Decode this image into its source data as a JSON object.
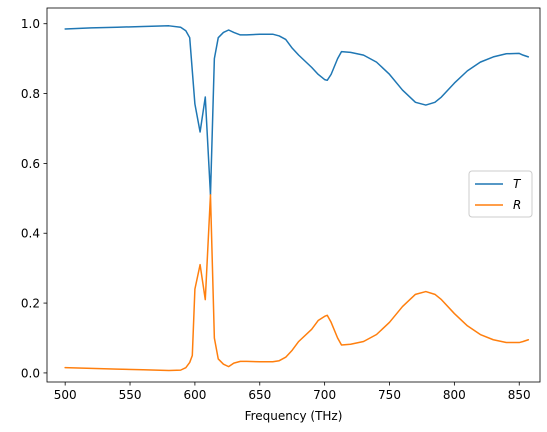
{
  "chart_data": {
    "type": "line",
    "title": "",
    "xlabel": "Frequency (THz)",
    "ylabel": "",
    "xlim": [
      486,
      866
    ],
    "ylim": [
      -0.026,
      1.045
    ],
    "xticks": [
      500,
      550,
      600,
      650,
      700,
      750,
      800,
      850
    ],
    "yticks": [
      0.0,
      0.2,
      0.4,
      0.6,
      0.8,
      1.0
    ],
    "ytick_labels": [
      "0.0",
      "0.2",
      "0.4",
      "0.6",
      "0.8",
      "1.0"
    ],
    "grid": false,
    "legend": "center-right",
    "series": [
      {
        "name": "T",
        "color": "#1f77b4",
        "x": [
          500,
          520,
          540,
          560,
          580,
          589,
          593,
          596,
          600,
          604,
          608,
          612,
          615,
          618,
          622,
          626,
          630,
          635,
          640,
          650,
          660,
          665,
          670,
          675,
          680,
          690,
          695,
          700,
          702,
          705,
          710,
          713,
          720,
          730,
          740,
          750,
          760,
          770,
          778,
          785,
          790,
          800,
          810,
          820,
          830,
          840,
          850,
          853,
          857
        ],
        "y": [
          0.985,
          0.988,
          0.99,
          0.992,
          0.994,
          0.99,
          0.98,
          0.96,
          0.77,
          0.69,
          0.79,
          0.51,
          0.9,
          0.96,
          0.975,
          0.982,
          0.975,
          0.968,
          0.968,
          0.97,
          0.97,
          0.965,
          0.955,
          0.93,
          0.91,
          0.875,
          0.855,
          0.84,
          0.838,
          0.855,
          0.9,
          0.92,
          0.918,
          0.91,
          0.89,
          0.855,
          0.81,
          0.775,
          0.767,
          0.775,
          0.79,
          0.83,
          0.865,
          0.89,
          0.905,
          0.914,
          0.915,
          0.91,
          0.905
        ]
      },
      {
        "name": "R",
        "color": "#ff7f0e",
        "x": [
          500,
          520,
          540,
          560,
          580,
          589,
          593,
          596,
          598,
          600,
          604,
          608,
          612,
          615,
          618,
          622,
          626,
          630,
          635,
          640,
          650,
          660,
          665,
          670,
          675,
          680,
          690,
          695,
          700,
          702,
          705,
          710,
          713,
          720,
          730,
          740,
          750,
          760,
          770,
          778,
          785,
          790,
          800,
          810,
          820,
          830,
          840,
          850,
          853,
          857
        ],
        "y": [
          0.015,
          0.013,
          0.011,
          0.009,
          0.007,
          0.008,
          0.015,
          0.03,
          0.05,
          0.24,
          0.31,
          0.21,
          0.51,
          0.1,
          0.04,
          0.025,
          0.018,
          0.028,
          0.033,
          0.033,
          0.032,
          0.032,
          0.035,
          0.045,
          0.065,
          0.09,
          0.125,
          0.15,
          0.162,
          0.165,
          0.145,
          0.1,
          0.08,
          0.082,
          0.09,
          0.11,
          0.145,
          0.19,
          0.225,
          0.233,
          0.225,
          0.21,
          0.17,
          0.135,
          0.11,
          0.095,
          0.087,
          0.087,
          0.09,
          0.095
        ]
      }
    ]
  }
}
